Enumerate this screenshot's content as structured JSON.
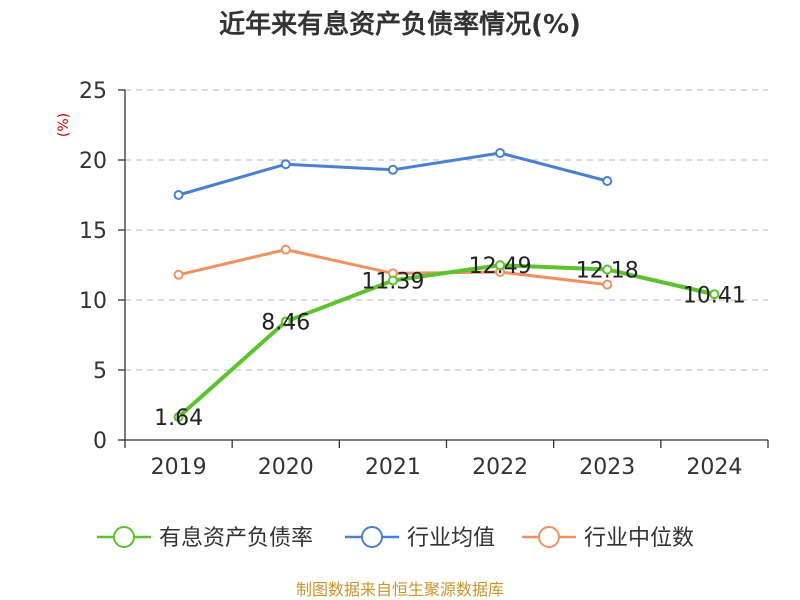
{
  "chart_data": {
    "type": "line",
    "title": "近年来有息资产负债率情况(%)",
    "ylabel": "(%)",
    "categories": [
      "2019",
      "2020",
      "2021",
      "2022",
      "2023",
      "2024"
    ],
    "ylim": [
      0,
      25
    ],
    "yticks": [
      0,
      5,
      10,
      15,
      20,
      25
    ],
    "grid": true,
    "legend_position": "bottom",
    "series": [
      {
        "name": "有息资产负债率",
        "color": "#5cc22d",
        "values": [
          1.64,
          8.46,
          11.39,
          12.49,
          12.18,
          10.41
        ],
        "data_labels": [
          "1.64",
          "8.46",
          "11.39",
          "12.49",
          "12.18",
          "10.41"
        ]
      },
      {
        "name": "行业均值",
        "color": "#4a7fd4",
        "values": [
          17.5,
          19.7,
          19.3,
          20.5,
          18.5,
          null
        ]
      },
      {
        "name": "行业中位数",
        "color": "#f39060",
        "values": [
          11.8,
          13.6,
          11.9,
          12.0,
          11.1,
          null
        ]
      }
    ],
    "source": "制图数据来自恒生聚源数据库"
  }
}
